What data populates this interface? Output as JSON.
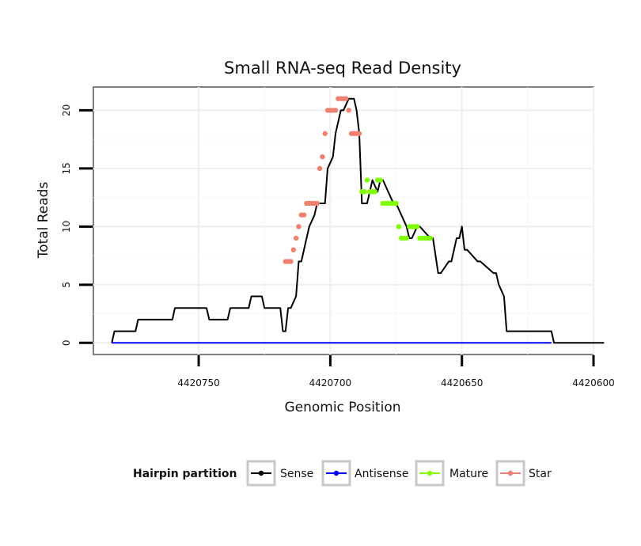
{
  "chart_data": {
    "type": "line",
    "title": "Small RNA-seq Read Density",
    "xlabel": "Genomic Position",
    "ylabel": "Total Reads",
    "x_reversed": true,
    "xlim": [
      4420600,
      4420790
    ],
    "ylim": [
      -1,
      22
    ],
    "x_ticks": [
      4420750,
      4420700,
      4420650,
      4420600
    ],
    "x_tick_labels": [
      "4420750",
      "4420700",
      "4420650",
      "4420600"
    ],
    "y_ticks": [
      0,
      5,
      10,
      15,
      20
    ],
    "y_tick_labels": [
      "0",
      "5",
      "10",
      "15",
      "20"
    ],
    "grid": true,
    "legend": {
      "title": "Hairpin partition",
      "position": "bottom",
      "entries": [
        {
          "name": "Sense",
          "color": "#000000"
        },
        {
          "name": "Antisense",
          "color": "#0000ff"
        },
        {
          "name": "Mature",
          "color": "#7fff00"
        },
        {
          "name": "Star",
          "color": "#f08070"
        }
      ]
    },
    "series": [
      {
        "name": "Sense",
        "color": "#000000",
        "style": "line",
        "x": [
          4420783,
          4420782,
          4420779,
          4420778,
          4420774,
          4420773,
          4420768,
          4420767,
          4420760,
          4420759,
          4420757,
          4420756,
          4420753,
          4420752,
          4420747,
          4420746,
          4420739,
          4420738,
          4420733,
          4420732,
          4420731,
          4420730,
          4420728,
          4420727,
          4420726,
          4420725,
          4420723,
          4420722,
          4420719,
          4420718,
          4420717,
          4420716,
          4420715,
          4420713,
          4420712,
          4420711,
          4420710,
          4420709,
          4420708,
          4420706,
          4420705,
          4420702,
          4420701,
          4420699,
          4420698,
          4420696,
          4420695,
          4420693,
          4420691,
          4420690,
          4420689,
          4420688,
          4420686,
          4420685,
          4420684,
          4420682,
          4420681,
          4420680,
          4420676,
          4420675,
          4420671,
          4420670,
          4420669,
          4420667,
          4420666,
          4420662,
          4420661,
          4420659,
          4420658,
          4420655,
          4420654,
          4420652,
          4420651,
          4420650,
          4420649,
          4420648,
          4420644,
          4420643,
          4420638,
          4420637,
          4420636,
          4420634,
          4420633,
          4420632,
          4420631,
          4420616,
          4420615,
          4420614,
          4420596
        ],
        "y": [
          0,
          1,
          1,
          1,
          1,
          2,
          2,
          2,
          2,
          3,
          3,
          3,
          3,
          3,
          3,
          2,
          2,
          3,
          3,
          3,
          3,
          4,
          4,
          4,
          4,
          3,
          3,
          3,
          3,
          1,
          1,
          3,
          3,
          4,
          7,
          7,
          8,
          9,
          10,
          11,
          12,
          12,
          15,
          16,
          18,
          20,
          20,
          21,
          21,
          20,
          18,
          12,
          12,
          13,
          14,
          13,
          14,
          14,
          12,
          12,
          10,
          9,
          9,
          10,
          10,
          9,
          9,
          6,
          6,
          7,
          7,
          9,
          9,
          10,
          8,
          8,
          7,
          7,
          6,
          6,
          5,
          4,
          1,
          1,
          1,
          1,
          0,
          0,
          0
        ]
      },
      {
        "name": "Antisense",
        "color": "#0000ff",
        "style": "line",
        "x": [
          4420783,
          4420616
        ],
        "y": [
          0,
          0
        ]
      },
      {
        "name": "Mature",
        "color": "#7fff00",
        "style": "points",
        "x": [
          4420688,
          4420687,
          4420686,
          4420685,
          4420684,
          4420683,
          4420682,
          4420681,
          4420680,
          4420679,
          4420678,
          4420677,
          4420676,
          4420675,
          4420674,
          4420673,
          4420672,
          4420671,
          4420670,
          4420669,
          4420668,
          4420667,
          4420666,
          4420665,
          4420664,
          4420663,
          4420662
        ],
        "y": [
          13,
          13,
          14,
          13,
          13,
          13,
          14,
          14,
          12,
          12,
          12,
          12,
          12,
          12,
          10,
          9,
          9,
          9,
          10,
          10,
          10,
          10,
          9,
          9,
          9,
          9,
          9
        ]
      },
      {
        "name": "Star",
        "color": "#f08070",
        "style": "points",
        "x": [
          4420717,
          4420716,
          4420715,
          4420714,
          4420713,
          4420712,
          4420711,
          4420710,
          4420709,
          4420708,
          4420707,
          4420706,
          4420705,
          4420704,
          4420703,
          4420702,
          4420701,
          4420700,
          4420699,
          4420698,
          4420697,
          4420696,
          4420695,
          4420694,
          4420693,
          4420692,
          4420691,
          4420690,
          4420689
        ],
        "y": [
          7,
          7,
          7,
          8,
          9,
          10,
          11,
          11,
          12,
          12,
          12,
          12,
          12,
          15,
          16,
          18,
          20,
          20,
          20,
          20,
          21,
          21,
          21,
          21,
          20,
          18,
          18,
          18,
          18
        ]
      }
    ]
  }
}
